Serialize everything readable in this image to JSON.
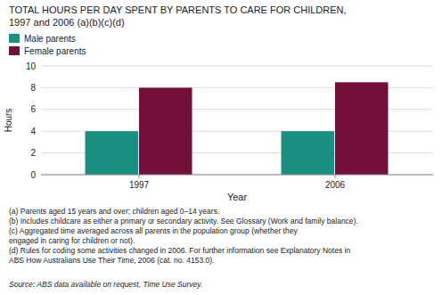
{
  "chart_data": {
    "type": "bar",
    "title": "TOTAL HOURS PER DAY SPENT BY PARENTS TO CARE FOR CHILDREN,",
    "subtitle": "1997 and 2006 (a)(b)(c)(d)",
    "x_label": "Year",
    "y_label": "Hours",
    "categories": [
      "1997",
      "2006"
    ],
    "series": [
      {
        "name": "Male parents",
        "color": "#1A9080",
        "values": [
          4.0,
          4.0
        ]
      },
      {
        "name": "Female parents",
        "color": "#72103A",
        "values": [
          8.0,
          8.5
        ]
      }
    ],
    "ylim": [
      0,
      10
    ],
    "yticks": [
      0,
      2,
      4,
      6,
      8,
      10
    ],
    "grid": true,
    "legend": "upper left",
    "annotations": [
      "(a) Parents aged 15 years and over; children aged 0–14 years.",
      "(b) Includes childcare as either a primary or secondary activity. See Glossary (Work and family balance).",
      "(c) Aggregated time averaged across all parents in the population group (whether they",
      "engaged in caring for children or not).",
      "(d) Rules for coding some activities changed in 2006. For further information see Explanatory Notes in",
      "ABS How Australians Use Their Time, 2006 (cat. no. 4153.0).",
      "Source: ABS data available on request, Time Use Survey."
    ]
  }
}
